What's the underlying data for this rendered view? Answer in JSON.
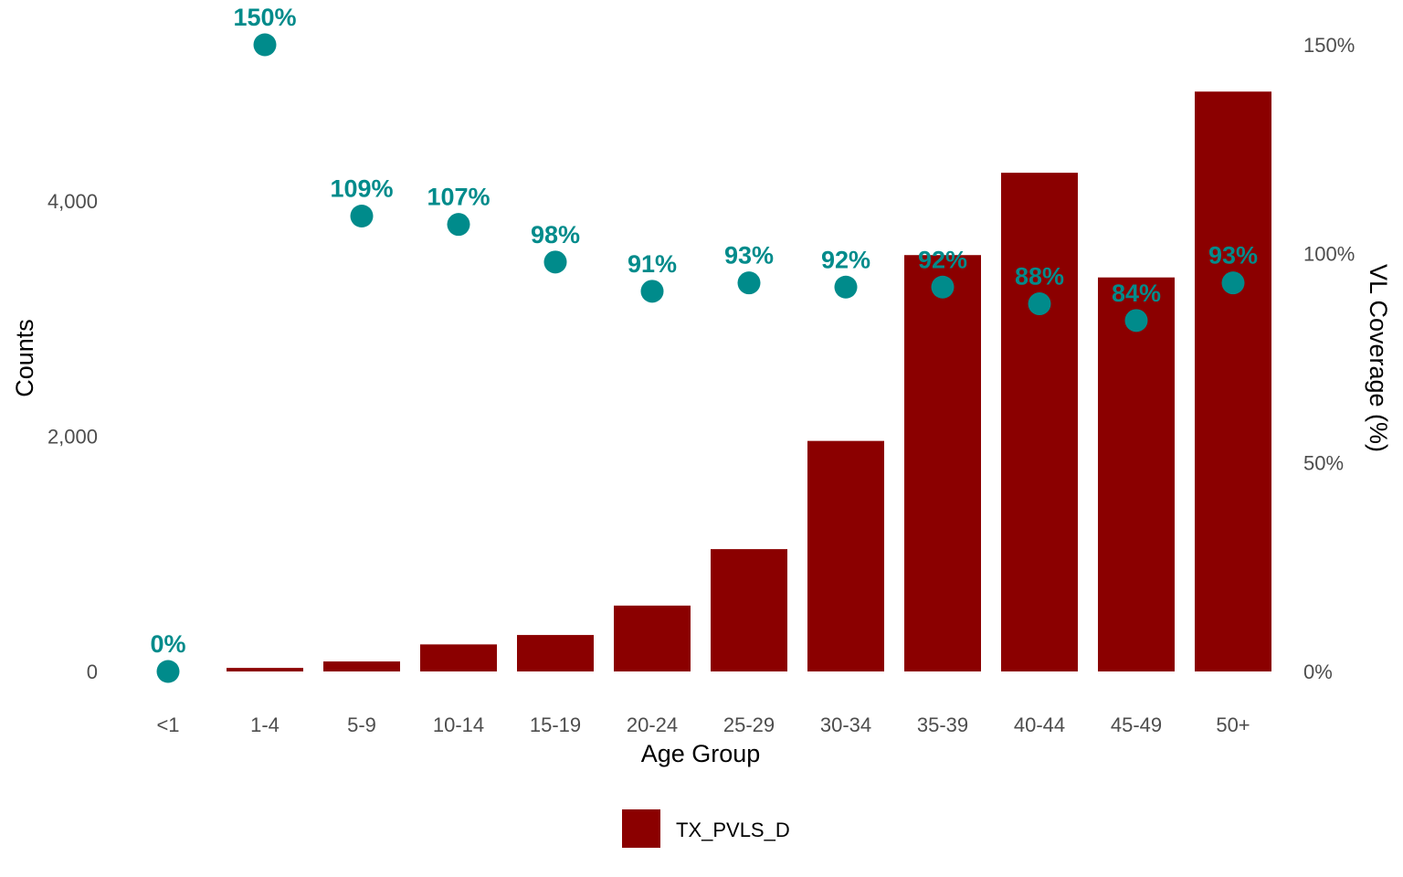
{
  "chart_data": {
    "type": "bar",
    "categories": [
      "<1",
      "1-4",
      "5-9",
      "10-14",
      "15-19",
      "20-24",
      "25-29",
      "30-34",
      "35-39",
      "40-44",
      "45-49",
      "50+"
    ],
    "series": [
      {
        "name": "TX_PVLS_D",
        "type": "bar",
        "axis": "left",
        "color": "#8B0000",
        "values": [
          0,
          30,
          85,
          230,
          310,
          560,
          1040,
          1960,
          3540,
          4240,
          3350,
          4930
        ]
      },
      {
        "type": "scatter",
        "axis": "right",
        "color": "#008B8B",
        "values": [
          0,
          150,
          109,
          107,
          98,
          91,
          93,
          92,
          92,
          88,
          84,
          93
        ],
        "labels": [
          "0%",
          "150%",
          "109%",
          "107%",
          "98%",
          "91%",
          "93%",
          "92%",
          "92%",
          "88%",
          "84%",
          "93%"
        ]
      }
    ],
    "xlabel": "Age Group",
    "ylabel": "Counts",
    "ylabel_right": "VL Coverage (%)",
    "ylim": [
      0,
      5320
    ],
    "ylim_right": [
      0,
      150
    ],
    "yticks": [
      0,
      2000,
      4000
    ],
    "ytick_labels": [
      "0",
      "2,000",
      "4,000"
    ],
    "yticks_right": [
      0,
      50,
      100,
      150
    ],
    "ytick_labels_right": [
      "0%",
      "50%",
      "100%",
      "150%"
    ],
    "legend": {
      "position": "bottom",
      "entries": [
        "TX_PVLS_D"
      ]
    },
    "grid": false
  }
}
